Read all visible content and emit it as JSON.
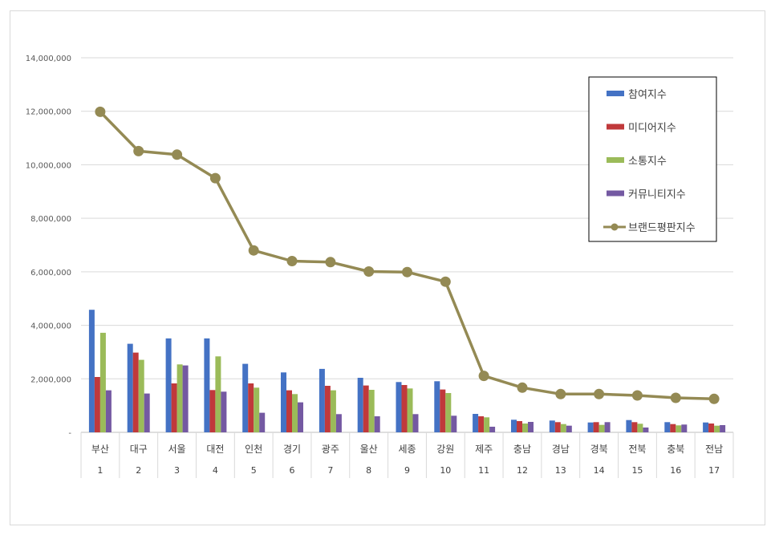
{
  "chart_data": {
    "type": "bar",
    "categories": [
      "부산",
      "대구",
      "서울",
      "대전",
      "인천",
      "경기",
      "광주",
      "울산",
      "세종",
      "강원",
      "제주",
      "충남",
      "경남",
      "경북",
      "전북",
      "충북",
      "전남"
    ],
    "ranks": [
      "1",
      "2",
      "3",
      "4",
      "5",
      "6",
      "7",
      "8",
      "9",
      "10",
      "11",
      "12",
      "13",
      "14",
      "15",
      "16",
      "17"
    ],
    "ylim": [
      0,
      14000000
    ],
    "yticks": [
      {
        "value": 0,
        "label": "-"
      },
      {
        "value": 2000000,
        "label": "2,000,000"
      },
      {
        "value": 4000000,
        "label": "4,000,000"
      },
      {
        "value": 6000000,
        "label": "6,000,000"
      },
      {
        "value": 8000000,
        "label": "8,000,000"
      },
      {
        "value": 10000000,
        "label": "10,000,000"
      },
      {
        "value": 12000000,
        "label": "12,000,000"
      },
      {
        "value": 14000000,
        "label": "14,000,000"
      }
    ],
    "grid": true,
    "legend_position": "top-right",
    "series": [
      {
        "name": "참여지수",
        "type": "bar",
        "color": "#4472c4",
        "values": [
          4580000,
          3310000,
          3510000,
          3510000,
          2560000,
          2240000,
          2370000,
          2040000,
          1880000,
          1910000,
          690000,
          470000,
          440000,
          370000,
          460000,
          380000,
          370000
        ]
      },
      {
        "name": "미디어지수",
        "type": "bar",
        "color": "#c0393b",
        "values": [
          2070000,
          2980000,
          1830000,
          1580000,
          1830000,
          1570000,
          1740000,
          1750000,
          1770000,
          1600000,
          600000,
          420000,
          380000,
          380000,
          380000,
          310000,
          330000
        ]
      },
      {
        "name": "소통지수",
        "type": "bar",
        "color": "#9bbb59",
        "values": [
          3720000,
          2710000,
          2540000,
          2840000,
          1670000,
          1430000,
          1570000,
          1590000,
          1640000,
          1470000,
          560000,
          330000,
          310000,
          280000,
          320000,
          260000,
          250000
        ]
      },
      {
        "name": "커뮤니티지수",
        "type": "bar",
        "color": "#7459a2",
        "values": [
          1570000,
          1450000,
          2500000,
          1520000,
          730000,
          1120000,
          680000,
          600000,
          680000,
          620000,
          210000,
          390000,
          250000,
          380000,
          180000,
          290000,
          270000
        ]
      },
      {
        "name": "브랜드평판지수",
        "type": "line",
        "color": "#948a54",
        "values": [
          11980000,
          10510000,
          10380000,
          9500000,
          6800000,
          6400000,
          6360000,
          6010000,
          5990000,
          5630000,
          2110000,
          1670000,
          1430000,
          1430000,
          1380000,
          1290000,
          1250000
        ]
      }
    ]
  }
}
